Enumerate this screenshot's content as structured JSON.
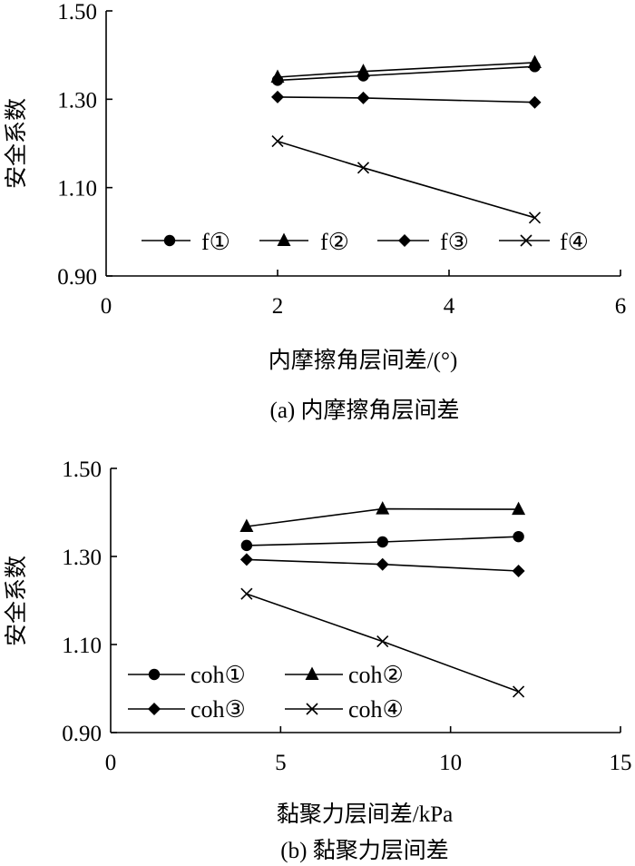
{
  "chart_data": [
    {
      "type": "line",
      "caption": "(a) 内摩擦角层间差",
      "xlabel": "内摩擦角层间差/(°)",
      "ylabel": "安全系数",
      "xlim": [
        0,
        6
      ],
      "ylim": [
        0.9,
        1.5
      ],
      "xticks": [
        "0",
        "2",
        "4",
        "6"
      ],
      "xtick_values": [
        0,
        2,
        4,
        6
      ],
      "yticks": [
        "0.90",
        "1.10",
        "1.30",
        "1.50"
      ],
      "ytick_values": [
        0.9,
        1.1,
        1.3,
        1.5
      ],
      "grid": false,
      "legend_position": "bottom-inside",
      "series": [
        {
          "name": "f①",
          "marker": "circle",
          "x": [
            2,
            3,
            5
          ],
          "y": [
            1.343,
            1.353,
            1.374
          ]
        },
        {
          "name": "f②",
          "marker": "triangle",
          "x": [
            2,
            3,
            5
          ],
          "y": [
            1.35,
            1.363,
            1.383
          ]
        },
        {
          "name": "f③",
          "marker": "diamond",
          "x": [
            2,
            3,
            5
          ],
          "y": [
            1.305,
            1.303,
            1.293
          ]
        },
        {
          "name": "f④",
          "marker": "x",
          "x": [
            2,
            3,
            5
          ],
          "y": [
            1.205,
            1.145,
            1.032
          ]
        }
      ]
    },
    {
      "type": "line",
      "caption": "(b) 黏聚力层间差",
      "xlabel": "黏聚力层间差/kPa",
      "ylabel": "安全系数",
      "xlim": [
        0,
        15
      ],
      "ylim": [
        0.9,
        1.5
      ],
      "xticks": [
        "0",
        "5",
        "10",
        "15"
      ],
      "xtick_values": [
        0,
        5,
        10,
        15
      ],
      "yticks": [
        "0.90",
        "1.10",
        "1.30",
        "1.50"
      ],
      "ytick_values": [
        0.9,
        1.1,
        1.3,
        1.5
      ],
      "grid": false,
      "legend_position": "bottom-left-inside",
      "series": [
        {
          "name": "coh①",
          "marker": "circle",
          "x": [
            4,
            8,
            12
          ],
          "y": [
            1.325,
            1.333,
            1.345
          ]
        },
        {
          "name": "coh②",
          "marker": "triangle",
          "x": [
            4,
            8,
            12
          ],
          "y": [
            1.368,
            1.408,
            1.407
          ]
        },
        {
          "name": "coh③",
          "marker": "diamond",
          "x": [
            4,
            8,
            12
          ],
          "y": [
            1.293,
            1.282,
            1.267
          ]
        },
        {
          "name": "coh④",
          "marker": "x",
          "x": [
            4,
            8,
            12
          ],
          "y": [
            1.215,
            1.107,
            0.993
          ]
        }
      ]
    }
  ]
}
